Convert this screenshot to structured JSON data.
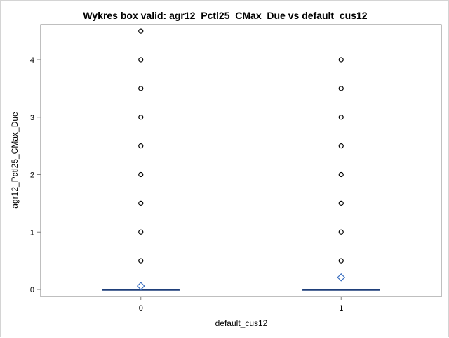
{
  "chart_data": {
    "type": "box",
    "title": "Wykres box valid: agr12_Pctl25_CMax_Due vs default_cus12",
    "xlabel": "default_cus12",
    "ylabel": "agr12_Pctl25_CMax_Due",
    "categories": [
      "0",
      "1"
    ],
    "ylim": [
      -0.12,
      4.65
    ],
    "yticks": [
      0,
      1,
      2,
      3,
      4
    ],
    "grid": false,
    "boxes": [
      {
        "category": "0",
        "min": 0,
        "q1": 0,
        "median": 0,
        "q3": 0,
        "max": 0,
        "mean": 0.06,
        "outliers": [
          0.5,
          1,
          1.5,
          2,
          2.5,
          3,
          3.5,
          4,
          4.5
        ]
      },
      {
        "category": "1",
        "min": 0,
        "q1": 0,
        "median": 0,
        "q3": 0,
        "max": 0,
        "mean": 0.21,
        "outliers": [
          0.5,
          1,
          1.5,
          2,
          2.5,
          3,
          3.5,
          4
        ]
      }
    ],
    "colors": {
      "box": "#1f3f7a",
      "mean_marker": "#3a6ebf",
      "outlier": "#000000",
      "axis": "#7f7f7f"
    }
  }
}
